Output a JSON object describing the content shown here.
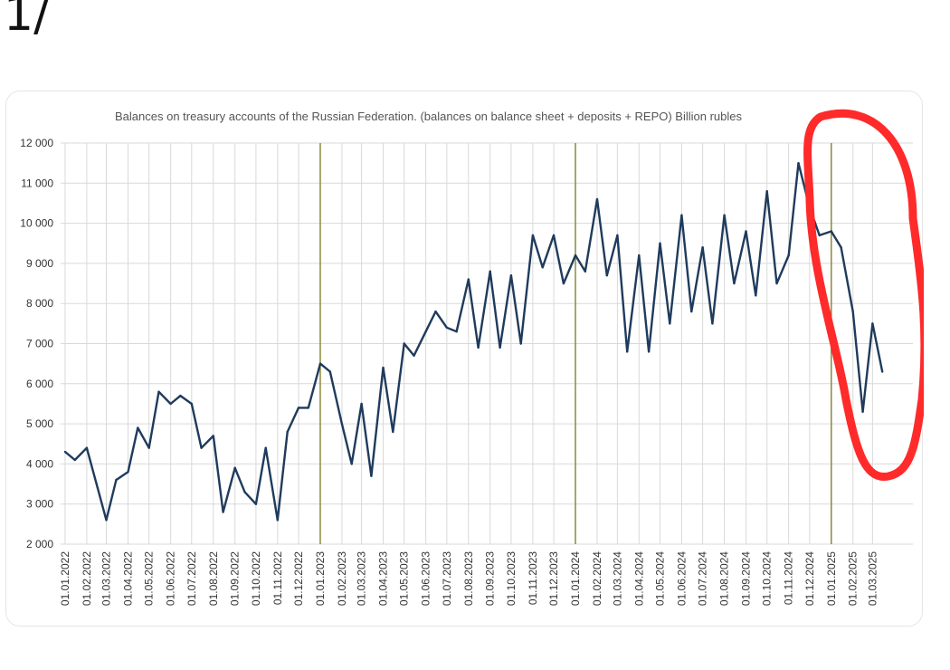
{
  "post": {
    "label": "1/"
  },
  "colors": {
    "line": "#1f3b5c",
    "marker": "#8a8a3a",
    "circle": "#ff2a2a",
    "grid": "#d9d9d9"
  },
  "chart_data": {
    "type": "line",
    "title": "Balances on treasury accounts of the Russian Federation. (balances on balance sheet + deposits + REPO) Billion rubles",
    "xlabel": "",
    "ylabel": "",
    "ylim": [
      2000,
      12000
    ],
    "yticks": [
      2000,
      3000,
      4000,
      5000,
      6000,
      7000,
      8000,
      9000,
      10000,
      11000,
      12000
    ],
    "ytick_labels": [
      "2 000",
      "3 000",
      "4 000",
      "5 000",
      "6 000",
      "7 000",
      "8 000",
      "9 000",
      "10 000",
      "11 000",
      "12 000"
    ],
    "x_tick_labels": [
      "01.01.2022",
      "01.02.2022",
      "01.03.2022",
      "01.04.2022",
      "01.05.2022",
      "01.06.2022",
      "01.07.2022",
      "01.08.2022",
      "01.09.2022",
      "01.10.2022",
      "01.11.2022",
      "01.12.2022",
      "01.01.2023",
      "01.02.2023",
      "01.03.2023",
      "01.04.2023",
      "01.05.2023",
      "01.06.2023",
      "01.07.2023",
      "01.08.2023",
      "01.09.2023",
      "01.10.2023",
      "01.11.2023",
      "01.12.2023",
      "01.01.2024",
      "01.02.2024",
      "01.03.2024",
      "01.04.2024",
      "01.05.2024",
      "01.06.2024",
      "01.07.2024",
      "01.08.2024",
      "01.09.2024",
      "01.10.2024",
      "01.11.2024",
      "01.12.2024",
      "01.01.2025",
      "01.02.2025",
      "01.03.2025"
    ],
    "year_markers": [
      "01.01.2023",
      "01.01.2024",
      "01.01.2025"
    ],
    "grid": true,
    "legend": "none",
    "series": [
      {
        "x": [
          "01.01.2022",
          "15.01.2022",
          "01.02.2022",
          "15.02.2022",
          "01.03.2022",
          "15.03.2022",
          "01.04.2022",
          "15.04.2022",
          "01.05.2022",
          "15.05.2022",
          "01.06.2022",
          "15.06.2022",
          "01.07.2022",
          "15.07.2022",
          "01.08.2022",
          "15.08.2022",
          "01.09.2022",
          "15.09.2022",
          "01.10.2022",
          "15.10.2022",
          "01.11.2022",
          "15.11.2022",
          "01.12.2022",
          "15.12.2022",
          "01.01.2023",
          "15.01.2023",
          "01.02.2023",
          "15.02.2023",
          "01.03.2023",
          "15.03.2023",
          "01.04.2023",
          "15.04.2023",
          "01.05.2023",
          "15.05.2023",
          "01.06.2023",
          "15.06.2023",
          "01.07.2023",
          "15.07.2023",
          "01.08.2023",
          "15.08.2023",
          "01.09.2023",
          "15.09.2023",
          "01.10.2023",
          "15.10.2023",
          "01.11.2023",
          "15.11.2023",
          "01.12.2023",
          "15.12.2023",
          "01.01.2024",
          "15.01.2024",
          "01.02.2024",
          "15.02.2024",
          "01.03.2024",
          "15.03.2024",
          "01.04.2024",
          "15.04.2024",
          "01.05.2024",
          "15.05.2024",
          "01.06.2024",
          "15.06.2024",
          "01.07.2024",
          "15.07.2024",
          "01.08.2024",
          "15.08.2024",
          "01.09.2024",
          "15.09.2024",
          "01.10.2024",
          "15.10.2024",
          "01.11.2024",
          "15.11.2024",
          "01.12.2024",
          "15.12.2024",
          "01.01.2025",
          "15.01.2025",
          "01.02.2025",
          "15.02.2025",
          "01.03.2025",
          "15.03.2025"
        ],
        "values": [
          4300,
          4100,
          4400,
          3500,
          2600,
          3600,
          3800,
          4900,
          4400,
          5800,
          5500,
          5700,
          5500,
          4400,
          4700,
          2800,
          3900,
          3300,
          3000,
          4400,
          2600,
          4800,
          5400,
          5400,
          6500,
          6300,
          5000,
          4000,
          5500,
          3700,
          6400,
          4800,
          7000,
          6700,
          7300,
          7800,
          7400,
          7300,
          8600,
          6900,
          8800,
          6900,
          8700,
          7000,
          9700,
          8900,
          9700,
          8500,
          9200,
          8800,
          10600,
          8700,
          9700,
          6800,
          9200,
          6800,
          9500,
          7500,
          10200,
          7800,
          9400,
          7500,
          10200,
          8500,
          9800,
          8200,
          10800,
          8500,
          9200,
          11500,
          10400,
          9700,
          9800,
          9400,
          7800,
          5300,
          7500,
          6300
        ]
      }
    ]
  }
}
